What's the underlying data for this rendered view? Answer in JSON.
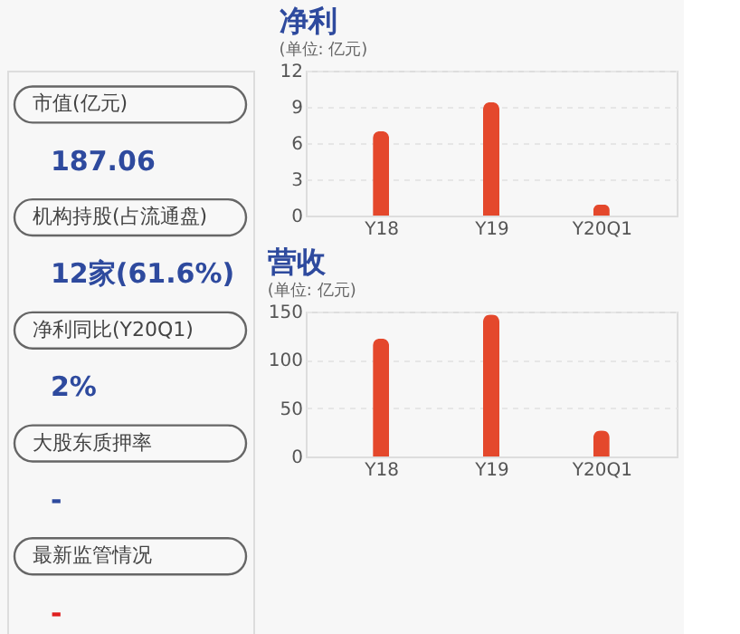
{
  "chart_data": [
    {
      "type": "other",
      "annotations": [
        "市值(亿元)",
        "187.06",
        "机构持股(占流通盘)",
        "12家(61.6%)",
        "净利同比(Y20Q1)",
        "2%",
        "大股东质押率",
        "-",
        "最新监管情况",
        "-"
      ],
      "colors": [
        "#444444",
        "#2e4a9e",
        "#444444",
        "#2e4a9e",
        "#444444",
        "#2e4a9e",
        "#444444",
        "#2e4a9e",
        "#444444",
        "#e02020"
      ]
    },
    {
      "type": "bar",
      "title": "净利",
      "subtitle": "(单位: 亿元)",
      "categories": [
        "Y18",
        "Y19",
        "Y20Q1"
      ],
      "values": [
        7.0,
        9.4,
        0.9
      ],
      "color": "#e4482c",
      "ylim": [
        0,
        12
      ],
      "yticks": [
        0,
        3,
        6,
        9,
        12
      ],
      "grid": "y"
    },
    {
      "type": "bar",
      "title": "营收",
      "subtitle": "(单位: 亿元)",
      "categories": [
        "Y18",
        "Y19",
        "Y20Q1"
      ],
      "values": [
        122,
        147,
        27
      ],
      "color": "#e4482c",
      "ylim": [
        0,
        150
      ],
      "yticks": [
        0,
        50,
        100,
        150
      ],
      "grid": "y"
    }
  ]
}
